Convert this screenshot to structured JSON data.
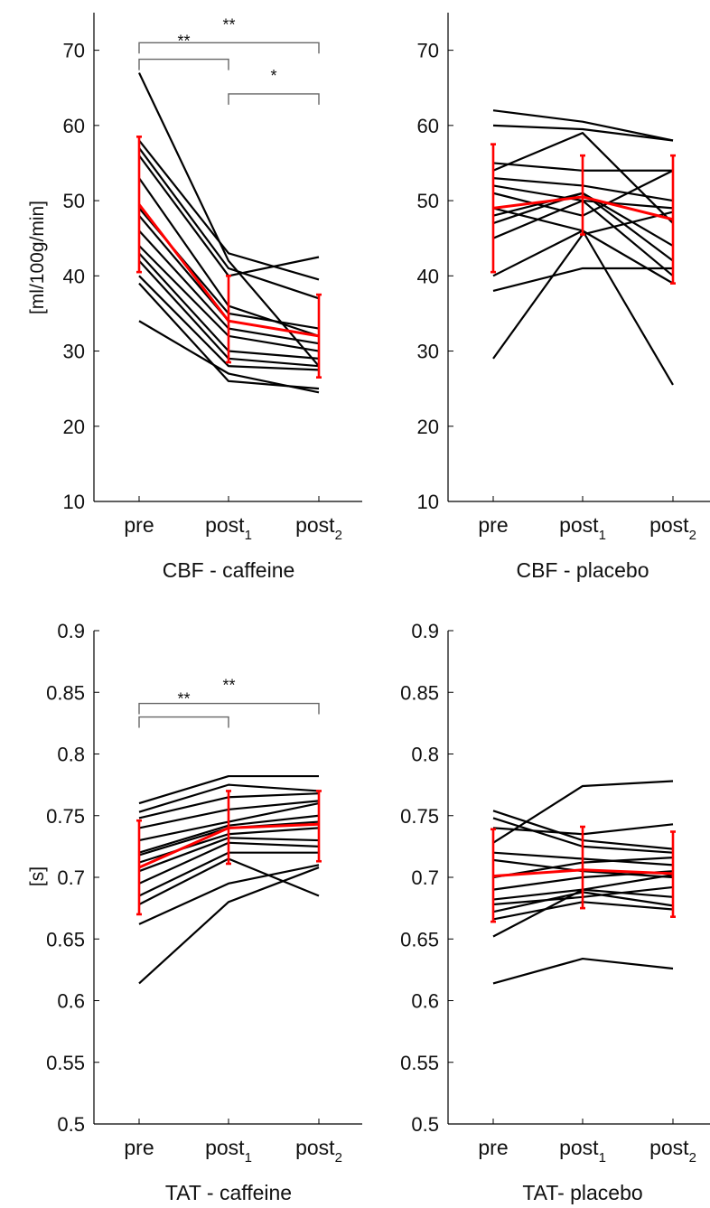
{
  "figure": {
    "colors": {
      "subject": "#000000",
      "mean": "#ff0000",
      "axis": "#000000",
      "bracket": "#666666"
    }
  },
  "chart_data": [
    {
      "id": "cbf_caffeine",
      "type": "line",
      "xlabel": "CBF - caffeine",
      "ylabel": "[ml/100g/min]",
      "categories": [
        {
          "base": "pre",
          "sub": ""
        },
        {
          "base": "post",
          "sub": "1"
        },
        {
          "base": "post",
          "sub": "2"
        }
      ],
      "ylim": [
        10,
        75
      ],
      "yticks": [
        10,
        20,
        30,
        40,
        50,
        60,
        70
      ],
      "subjects": [
        [
          67,
          42,
          28
        ],
        [
          58,
          43,
          39.5
        ],
        [
          57,
          41,
          37
        ],
        [
          56,
          40,
          42.5
        ],
        [
          53,
          36,
          32
        ],
        [
          49,
          35,
          33
        ],
        [
          48,
          34,
          32
        ],
        [
          46,
          33,
          31
        ],
        [
          44,
          32,
          30
        ],
        [
          43,
          30,
          29
        ],
        [
          42,
          29,
          28
        ],
        [
          40,
          28,
          27.5
        ],
        [
          39,
          26,
          25
        ],
        [
          34,
          27,
          24.5
        ]
      ],
      "mean": [
        49.5,
        34,
        32
      ],
      "error": [
        [
          40.5,
          58.5
        ],
        [
          28.5,
          40
        ],
        [
          26.5,
          37.5
        ]
      ],
      "significance": [
        {
          "from": 0,
          "to": 1,
          "label": "**",
          "level": 68.8
        },
        {
          "from": 0,
          "to": 2,
          "label": "**",
          "level": 71
        },
        {
          "from": 1,
          "to": 2,
          "label": "*",
          "level": 64.2
        }
      ]
    },
    {
      "id": "cbf_placebo",
      "type": "line",
      "xlabel": "CBF - placebo",
      "ylabel": "",
      "categories": [
        {
          "base": "pre",
          "sub": ""
        },
        {
          "base": "post",
          "sub": "1"
        },
        {
          "base": "post",
          "sub": "2"
        }
      ],
      "ylim": [
        10,
        75
      ],
      "yticks": [
        10,
        20,
        30,
        40,
        50,
        60,
        70
      ],
      "subjects": [
        [
          62,
          60.5,
          58
        ],
        [
          60,
          59.5,
          58
        ],
        [
          55,
          54,
          54
        ],
        [
          54,
          59,
          47
        ],
        [
          53,
          52,
          50
        ],
        [
          52,
          50,
          49
        ],
        [
          51,
          48,
          54
        ],
        [
          49,
          46,
          25.5
        ],
        [
          48,
          51,
          44
        ],
        [
          47,
          51,
          42
        ],
        [
          45,
          50,
          40
        ],
        [
          40,
          46,
          39
        ],
        [
          38,
          41,
          41
        ],
        [
          29,
          45.5,
          48.5
        ]
      ],
      "mean": [
        49,
        50.5,
        47.5
      ],
      "error": [
        [
          40.5,
          57.5
        ],
        [
          45.5,
          56
        ],
        [
          39,
          56
        ]
      ],
      "significance": []
    },
    {
      "id": "tat_caffeine",
      "type": "line",
      "xlabel": "TAT - caffeine",
      "ylabel": "[s]",
      "categories": [
        {
          "base": "pre",
          "sub": ""
        },
        {
          "base": "post",
          "sub": "1"
        },
        {
          "base": "post",
          "sub": "2"
        }
      ],
      "ylim": [
        0.5,
        0.9
      ],
      "yticks": [
        0.5,
        0.55,
        0.6,
        0.65,
        0.7,
        0.75,
        0.8,
        0.85,
        0.9
      ],
      "subjects": [
        [
          0.76,
          0.782,
          0.782
        ],
        [
          0.753,
          0.775,
          0.77
        ],
        [
          0.748,
          0.765,
          0.768
        ],
        [
          0.74,
          0.755,
          0.762
        ],
        [
          0.73,
          0.745,
          0.76
        ],
        [
          0.72,
          0.742,
          0.75
        ],
        [
          0.718,
          0.74,
          0.745
        ],
        [
          0.712,
          0.735,
          0.74
        ],
        [
          0.705,
          0.732,
          0.73
        ],
        [
          0.695,
          0.728,
          0.725
        ],
        [
          0.685,
          0.72,
          0.72
        ],
        [
          0.678,
          0.715,
          0.685
        ],
        [
          0.662,
          0.695,
          0.71
        ],
        [
          0.614,
          0.68,
          0.708
        ]
      ],
      "mean": [
        0.708,
        0.74,
        0.743
      ],
      "error": [
        [
          0.67,
          0.746
        ],
        [
          0.711,
          0.77
        ],
        [
          0.713,
          0.77
        ]
      ],
      "significance": [
        {
          "from": 0,
          "to": 1,
          "label": "**",
          "level": 0.83
        },
        {
          "from": 0,
          "to": 2,
          "label": "**",
          "level": 0.841
        }
      ]
    },
    {
      "id": "tat_placebo",
      "type": "line",
      "xlabel": "TAT- placebo",
      "ylabel": "",
      "categories": [
        {
          "base": "pre",
          "sub": ""
        },
        {
          "base": "post",
          "sub": "1"
        },
        {
          "base": "post",
          "sub": "2"
        }
      ],
      "ylim": [
        0.5,
        0.9
      ],
      "yticks": [
        0.5,
        0.55,
        0.6,
        0.65,
        0.7,
        0.75,
        0.8,
        0.85,
        0.9
      ],
      "subjects": [
        [
          0.754,
          0.73,
          0.723
        ],
        [
          0.748,
          0.725,
          0.72
        ],
        [
          0.74,
          0.735,
          0.743
        ],
        [
          0.728,
          0.774,
          0.778
        ],
        [
          0.72,
          0.715,
          0.71
        ],
        [
          0.714,
          0.705,
          0.7
        ],
        [
          0.7,
          0.712,
          0.716
        ],
        [
          0.69,
          0.7,
          0.705
        ],
        [
          0.682,
          0.69,
          0.684
        ],
        [
          0.678,
          0.684,
          0.692
        ],
        [
          0.672,
          0.688,
          0.677
        ],
        [
          0.666,
          0.68,
          0.674
        ],
        [
          0.652,
          0.69,
          0.702
        ],
        [
          0.614,
          0.634,
          0.626
        ]
      ],
      "mean": [
        0.701,
        0.706,
        0.703
      ],
      "error": [
        [
          0.664,
          0.739
        ],
        [
          0.675,
          0.741
        ],
        [
          0.668,
          0.737
        ]
      ],
      "significance": []
    }
  ]
}
